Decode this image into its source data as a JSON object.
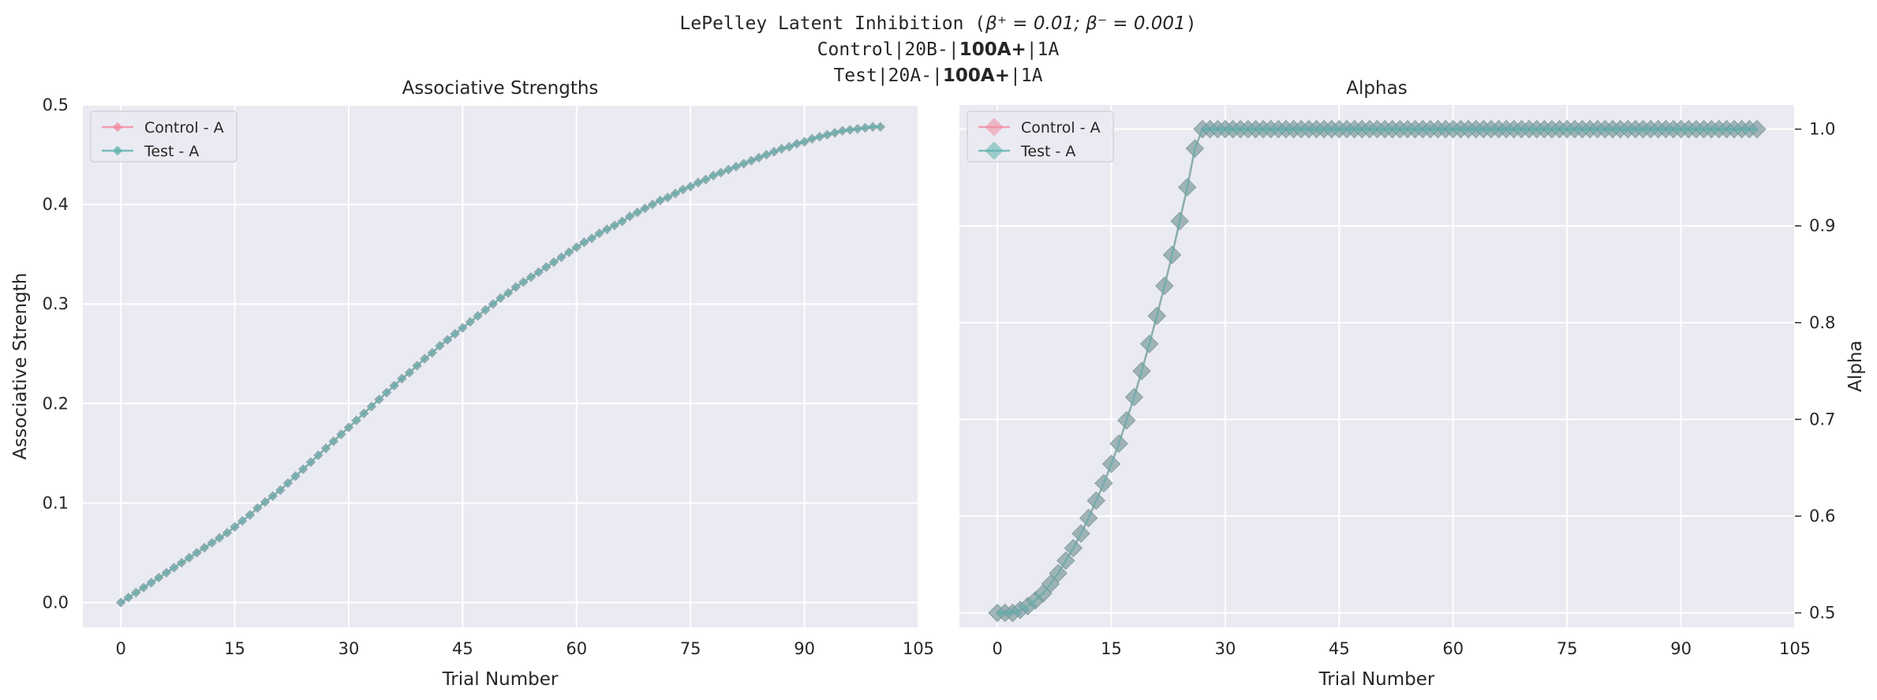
{
  "figure": {
    "suptitle_line1_prefix": "LePelley Latent Inhibition (",
    "suptitle_line1_math": "β⁺ = 0.01; β⁻ = 0.001",
    "suptitle_line1_suffix": ")",
    "suptitle_line2_a": "Control|20B-|",
    "suptitle_line2_b": "100A+",
    "suptitle_line2_c": "|1A",
    "suptitle_line3_a": "Test|20A-|",
    "suptitle_line3_b": "100A+",
    "suptitle_line3_c": "|1A"
  },
  "colors": {
    "background": "#EAEAF2",
    "control": "#F08CA0",
    "test": "#5FB2AE",
    "overlap": "#7FA3A0"
  },
  "chart_data": [
    {
      "type": "line",
      "title": "Associative Strengths",
      "xlabel": "Trial Number",
      "ylabel": "Associative Strength",
      "xlim": [
        -5,
        105
      ],
      "ylim": [
        -0.025,
        0.5
      ],
      "xticks": [
        0,
        15,
        30,
        45,
        60,
        75,
        90,
        105
      ],
      "yticks": [
        0.0,
        0.1,
        0.2,
        0.3,
        0.4,
        0.5
      ],
      "ytick_labels": [
        "0.0",
        "0.1",
        "0.2",
        "0.3",
        "0.4",
        "0.5"
      ],
      "legend": {
        "position": "top-left",
        "entries": [
          "Control - A",
          "Test - A"
        ]
      },
      "grid": true,
      "series": [
        {
          "name": "Control - A",
          "marker": "diamond",
          "x_start": 0,
          "x_end": 100,
          "values": [
            0.0,
            0.005,
            0.01,
            0.015,
            0.02,
            0.025,
            0.03,
            0.035,
            0.04,
            0.045,
            0.05,
            0.055,
            0.06,
            0.065,
            0.07,
            0.076,
            0.082,
            0.088,
            0.095,
            0.101,
            0.107,
            0.113,
            0.12,
            0.127,
            0.134,
            0.141,
            0.148,
            0.155,
            0.162,
            0.169,
            0.176,
            0.183,
            0.19,
            0.197,
            0.204,
            0.211,
            0.218,
            0.225,
            0.231,
            0.238,
            0.245,
            0.251,
            0.258,
            0.264,
            0.27,
            0.276,
            0.282,
            0.288,
            0.294,
            0.3,
            0.306,
            0.311,
            0.317,
            0.322,
            0.327,
            0.332,
            0.337,
            0.342,
            0.347,
            0.352,
            0.357,
            0.362,
            0.366,
            0.371,
            0.375,
            0.379,
            0.383,
            0.388,
            0.392,
            0.396,
            0.4,
            0.404,
            0.407,
            0.411,
            0.415,
            0.418,
            0.422,
            0.425,
            0.429,
            0.432,
            0.435,
            0.438,
            0.441,
            0.444,
            0.447,
            0.45,
            0.453,
            0.456,
            0.458,
            0.461,
            0.463,
            0.466,
            0.468,
            0.47,
            0.472,
            0.474,
            0.475,
            0.476,
            0.477,
            0.478,
            0.478
          ]
        },
        {
          "name": "Test - A",
          "marker": "diamond",
          "x_start": 0,
          "x_end": 100,
          "values": [
            0.0,
            0.005,
            0.01,
            0.015,
            0.02,
            0.025,
            0.03,
            0.035,
            0.04,
            0.045,
            0.05,
            0.055,
            0.06,
            0.065,
            0.07,
            0.076,
            0.082,
            0.088,
            0.095,
            0.101,
            0.107,
            0.113,
            0.12,
            0.127,
            0.134,
            0.141,
            0.148,
            0.155,
            0.162,
            0.169,
            0.176,
            0.183,
            0.19,
            0.197,
            0.204,
            0.211,
            0.218,
            0.225,
            0.231,
            0.238,
            0.245,
            0.251,
            0.258,
            0.264,
            0.27,
            0.276,
            0.282,
            0.288,
            0.294,
            0.3,
            0.306,
            0.311,
            0.317,
            0.322,
            0.327,
            0.332,
            0.337,
            0.342,
            0.347,
            0.352,
            0.357,
            0.362,
            0.366,
            0.371,
            0.375,
            0.379,
            0.383,
            0.388,
            0.392,
            0.396,
            0.4,
            0.404,
            0.407,
            0.411,
            0.415,
            0.418,
            0.422,
            0.425,
            0.429,
            0.432,
            0.435,
            0.438,
            0.441,
            0.444,
            0.447,
            0.45,
            0.453,
            0.456,
            0.458,
            0.461,
            0.463,
            0.466,
            0.468,
            0.47,
            0.472,
            0.474,
            0.475,
            0.476,
            0.477,
            0.478,
            0.478
          ]
        }
      ]
    },
    {
      "type": "line",
      "title": "Alphas",
      "xlabel": "Trial Number",
      "ylabel": "Alpha",
      "ylabel_side": "right",
      "xlim": [
        -5,
        105
      ],
      "ylim": [
        0.485,
        1.025
      ],
      "xticks": [
        0,
        15,
        30,
        45,
        60,
        75,
        90,
        105
      ],
      "yticks": [
        0.5,
        0.6,
        0.7,
        0.8,
        0.9,
        1.0
      ],
      "ytick_labels": [
        "0.5",
        "0.6",
        "0.7",
        "0.8",
        "0.9",
        "1.0"
      ],
      "legend": {
        "position": "top-left",
        "entries": [
          "Control - A",
          "Test - A"
        ]
      },
      "grid": true,
      "series": [
        {
          "name": "Control - A",
          "marker": "diamond",
          "x_start": 0,
          "x_end": 100,
          "values": [
            0.5,
            0.5,
            0.502,
            0.505,
            0.51,
            0.517,
            0.527,
            0.54,
            0.556,
            0.576,
            0.6,
            0.628,
            0.66,
            0.695,
            0.734,
            0.776,
            0.82,
            0.866,
            0.913,
            0.96,
            0.96,
            1.0
          ]
        },
        {
          "name": "Test - A",
          "marker": "diamond",
          "x_start": 0,
          "x_end": 100,
          "values": [
            0.5,
            0.5,
            0.502,
            0.505,
            0.51,
            0.517,
            0.527,
            0.54,
            0.556,
            0.576,
            0.6,
            0.628,
            0.66,
            0.695,
            0.734,
            0.776,
            0.82,
            0.866,
            0.913,
            0.96,
            0.96,
            1.0
          ]
        }
      ],
      "alpha_curve": [
        [
          0,
          0.5
        ],
        [
          1,
          0.5
        ],
        [
          2,
          0.5
        ],
        [
          3,
          0.503
        ],
        [
          4,
          0.507
        ],
        [
          5,
          0.513
        ],
        [
          6,
          0.52
        ],
        [
          7,
          0.53
        ],
        [
          8,
          0.541
        ],
        [
          9,
          0.554
        ],
        [
          10,
          0.567
        ],
        [
          11,
          0.582
        ],
        [
          12,
          0.598
        ],
        [
          13,
          0.616
        ],
        [
          14,
          0.634
        ],
        [
          15,
          0.654
        ],
        [
          16,
          0.675
        ],
        [
          17,
          0.699
        ],
        [
          18,
          0.723
        ],
        [
          19,
          0.75
        ],
        [
          20,
          0.778
        ],
        [
          21,
          0.807
        ],
        [
          22,
          0.838
        ],
        [
          23,
          0.87
        ],
        [
          24,
          0.905
        ],
        [
          25,
          0.94
        ],
        [
          26,
          0.98
        ],
        [
          27,
          1.0
        ],
        [
          100,
          1.0
        ]
      ]
    }
  ]
}
